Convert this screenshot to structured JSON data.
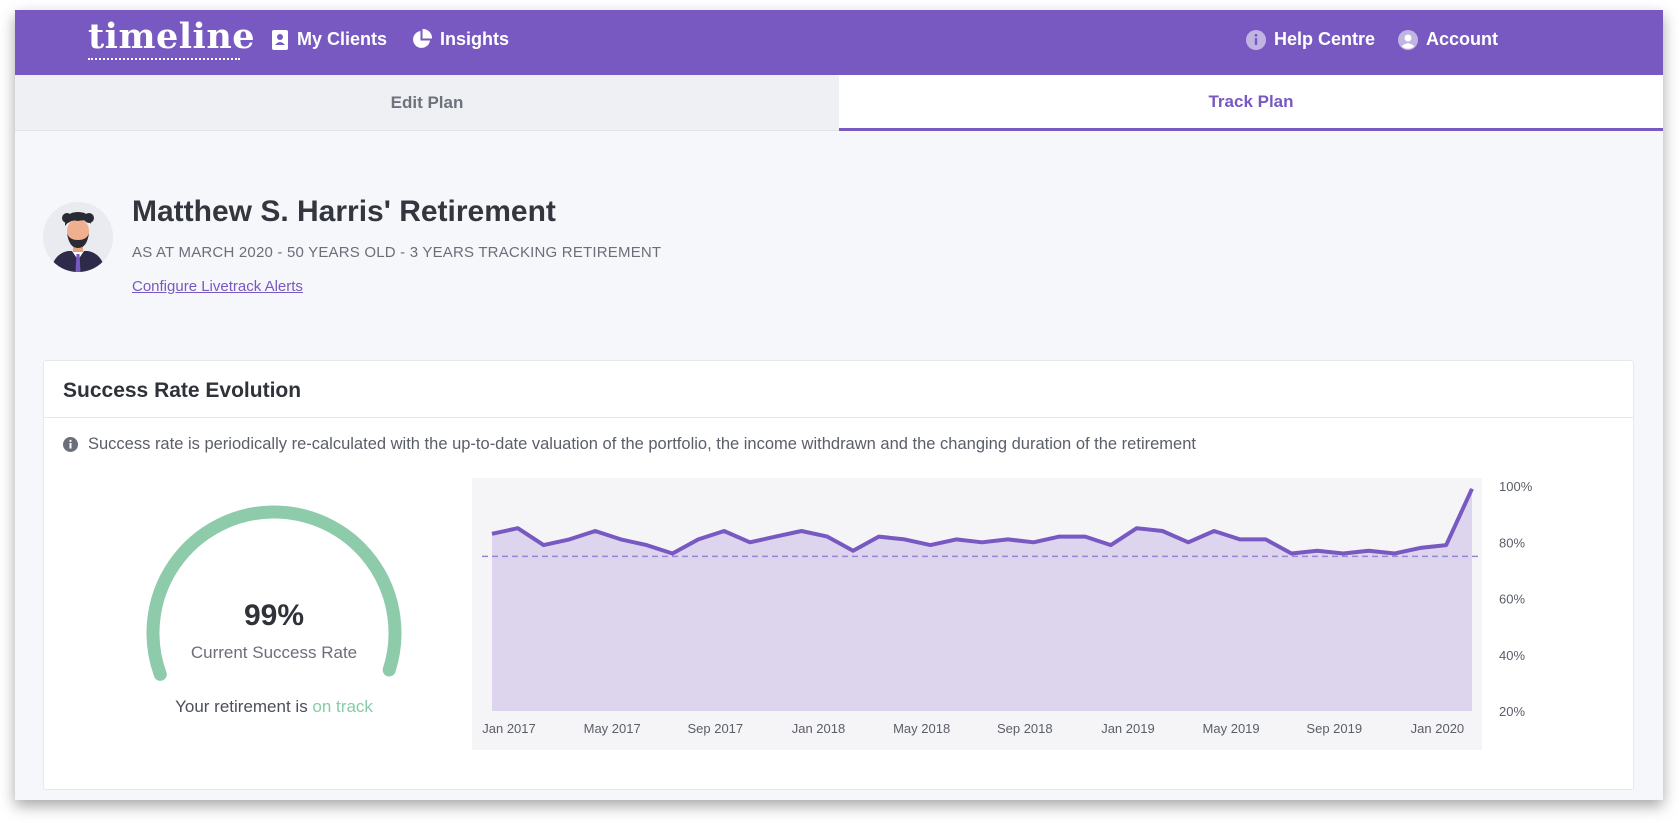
{
  "nav": {
    "logo": "timeline",
    "my_clients": "My Clients",
    "insights": "Insights",
    "help_centre": "Help Centre",
    "account": "Account"
  },
  "tabs": {
    "edit": "Edit Plan",
    "track": "Track Plan"
  },
  "client": {
    "title": "Matthew S. Harris' Retirement",
    "subtitle": "AS AT MARCH 2020 - 50 YEARS OLD - 3 YEARS TRACKING RETIREMENT",
    "alerts_link": "Configure Livetrack Alerts"
  },
  "card": {
    "title": "Success Rate Evolution",
    "info": "Success rate is periodically re-calculated with the up-to-date valuation of the portfolio, the income withdrawn and the changing duration of the retirement"
  },
  "gauge": {
    "value_text": "99%",
    "value": 99,
    "label": "Current Success Rate",
    "status_prefix": "Your retirement is ",
    "status": "on track"
  },
  "colors": {
    "brand": "#7759c1",
    "fill": "#ddd5ee",
    "gauge": "#8ecbaa",
    "ok": "#84cda6"
  },
  "chart_data": {
    "type": "area",
    "x_tick_labels": [
      "Jan 2017",
      "May 2017",
      "Sep 2017",
      "Jan 2018",
      "May 2018",
      "Sep 2018",
      "Jan 2019",
      "May 2019",
      "Sep 2019",
      "Jan 2020"
    ],
    "y_tick_labels": [
      "100%",
      "80%",
      "60%",
      "40%",
      "20%"
    ],
    "ylim": [
      20,
      100
    ],
    "y_position": "right",
    "threshold": 75,
    "x_start": "Jan 2017",
    "x_interval": "1 month",
    "values": [
      83,
      85,
      79,
      81,
      84,
      81,
      79,
      76,
      81,
      84,
      80,
      82,
      84,
      82,
      77,
      82,
      81,
      79,
      81,
      80,
      81,
      80,
      82,
      82,
      79,
      85,
      84,
      80,
      84,
      81,
      81,
      76,
      77,
      76,
      77,
      76,
      78,
      79,
      99
    ]
  }
}
